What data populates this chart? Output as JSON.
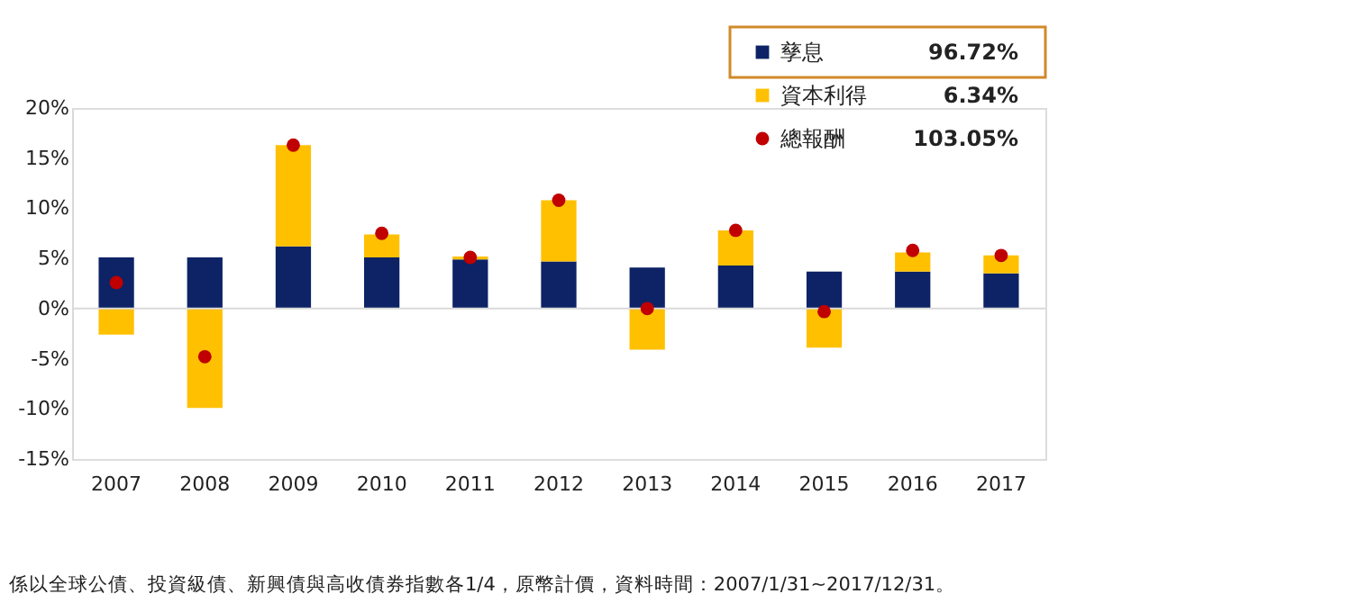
{
  "chart_data": {
    "type": "bar",
    "stacked": true,
    "categories": [
      "2007",
      "2008",
      "2009",
      "2010",
      "2011",
      "2012",
      "2013",
      "2014",
      "2015",
      "2016",
      "2017"
    ],
    "series": [
      {
        "name": "孳息",
        "color": "#0d2366",
        "values": [
          5.1,
          5.1,
          6.2,
          5.1,
          4.9,
          4.7,
          4.1,
          4.3,
          3.7,
          3.7,
          3.5
        ]
      },
      {
        "name": "資本利得",
        "color": "#ffc000",
        "values": [
          -2.6,
          -9.9,
          10.1,
          2.3,
          0.3,
          6.1,
          -4.1,
          3.5,
          -3.9,
          1.9,
          1.8
        ]
      },
      {
        "name": "總報酬",
        "color": "#c00000",
        "type": "scatter",
        "marker": "circle",
        "values": [
          2.6,
          -4.8,
          16.3,
          7.5,
          5.1,
          10.8,
          0.0,
          7.8,
          -0.3,
          5.8,
          5.3
        ]
      }
    ],
    "ylim": [
      -15,
      20
    ],
    "yticks": [
      {
        "value": -15,
        "label": "-15%"
      },
      {
        "value": -10,
        "label": "-10%"
      },
      {
        "value": -5,
        "label": "-5%"
      },
      {
        "value": 0,
        "label": "0%"
      },
      {
        "value": 5,
        "label": "5%"
      },
      {
        "value": 10,
        "label": "10%"
      },
      {
        "value": 15,
        "label": "15%"
      },
      {
        "value": 20,
        "label": "20%"
      }
    ],
    "ref_lines": [
      {
        "axis": "y",
        "value": 0,
        "color": "#d9d9d9"
      }
    ],
    "grid": false,
    "legend": "top right",
    "annotations": [
      "96.72%",
      "6.34%",
      "103.05%",
      "係以全球公債、投資級債、新興債與高收債券指數各1/4，原幣計價，資料時間：2007/1/31~2017/12/31。"
    ]
  }
}
